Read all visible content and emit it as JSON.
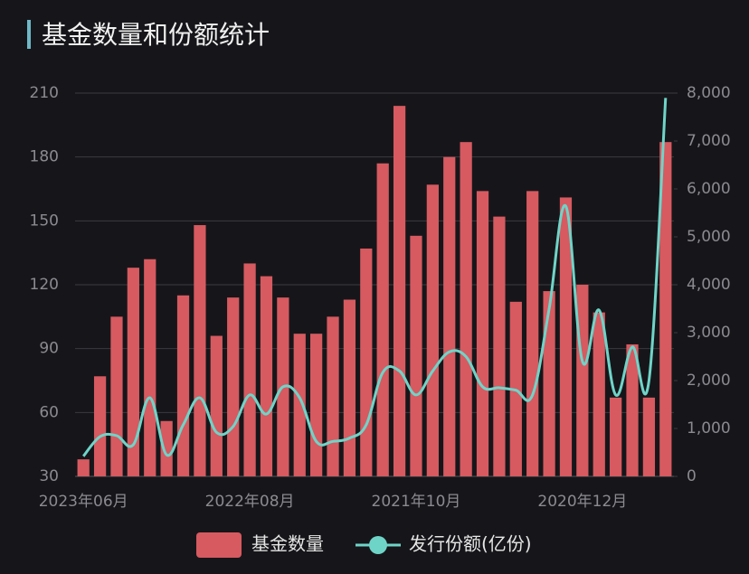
{
  "chart_data": {
    "type": "bar-line",
    "title": "基金数量和份额统计",
    "categories": [
      "2023年06月",
      null,
      null,
      null,
      null,
      null,
      null,
      null,
      null,
      null,
      "2022年08月",
      null,
      null,
      null,
      null,
      null,
      null,
      null,
      null,
      null,
      "2021年10月",
      null,
      null,
      null,
      null,
      null,
      null,
      null,
      null,
      null,
      "2020年12月",
      null,
      null,
      null,
      null,
      null
    ],
    "series": [
      {
        "name": "基金数量",
        "color": "#d65a60",
        "axis": "y",
        "kind": "bar",
        "values": [
          38,
          77,
          105,
          128,
          132,
          56,
          115,
          148,
          96,
          114,
          130,
          124,
          114,
          97,
          97,
          105,
          113,
          137,
          177,
          204,
          143,
          167,
          180,
          187,
          164,
          152,
          112,
          164,
          117,
          161,
          120,
          107,
          67,
          92,
          67,
          187
        ]
      },
      {
        "name": "发行份额(亿份)",
        "color": "#6fd4c8",
        "axis": "y2",
        "kind": "line",
        "values": [
          420,
          830,
          850,
          660,
          1640,
          450,
          1075,
          1640,
          920,
          1040,
          1700,
          1300,
          1870,
          1640,
          730,
          730,
          800,
          1075,
          2170,
          2200,
          1700,
          2200,
          2600,
          2500,
          1870,
          1850,
          1800,
          1700,
          3500,
          5640,
          2400,
          3470,
          1700,
          2700,
          2000,
          7900
        ]
      }
    ],
    "ylim": [
      30,
      210
    ],
    "yticks": [
      30,
      60,
      90,
      120,
      150,
      180,
      210
    ],
    "y2lim": [
      0,
      8000
    ],
    "y2ticks": [
      0,
      {
        "value": 1000,
        "label": "1,000"
      },
      {
        "value": 2000,
        "label": "2,000"
      },
      {
        "value": 3000,
        "label": "3,000"
      },
      {
        "value": 4000,
        "label": "4,000"
      },
      {
        "value": 5000,
        "label": "5,000"
      },
      {
        "value": 6000,
        "label": "6,000"
      },
      {
        "value": 7000,
        "label": "7,000"
      },
      {
        "value": 8000,
        "label": "8,000"
      }
    ],
    "grid": true
  }
}
